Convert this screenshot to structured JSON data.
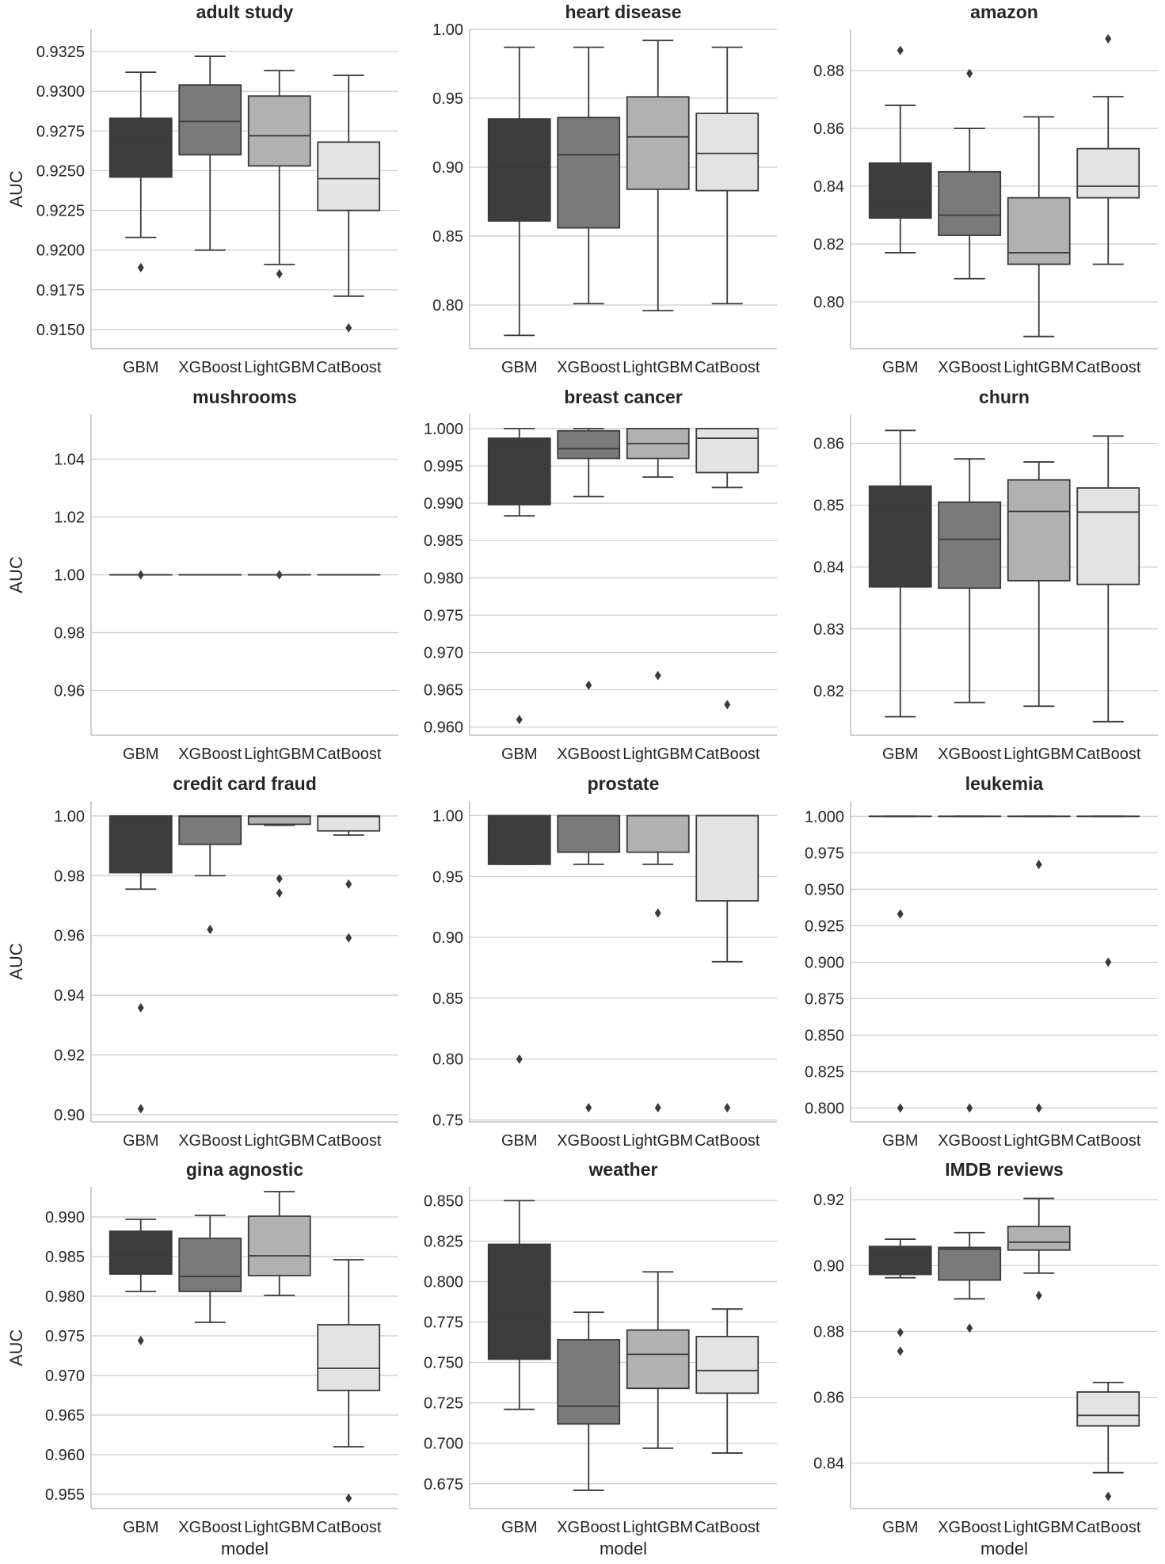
{
  "chart_data": [
    {
      "type": "box",
      "title": "adult study",
      "ylabel": "AUC",
      "xlabel": "",
      "ylim": [
        0.9138,
        0.9339
      ],
      "yticks": [
        0.915,
        0.9175,
        0.92,
        0.9225,
        0.925,
        0.9275,
        0.93,
        0.9325
      ],
      "ytick_labels": [
        "0.9150",
        "0.9175",
        "0.9200",
        "0.9225",
        "0.9250",
        "0.9275",
        "0.9300",
        "0.9325"
      ],
      "categories": [
        "GBM",
        "XGBoost",
        "LightGBM",
        "CatBoost"
      ],
      "boxes": [
        {
          "min": 0.9208,
          "q1": 0.9246,
          "median": 0.927,
          "q3": 0.9283,
          "max": 0.9312,
          "fliers": [
            0.9189
          ]
        },
        {
          "min": 0.92,
          "q1": 0.926,
          "median": 0.9281,
          "q3": 0.9304,
          "max": 0.9322,
          "fliers": []
        },
        {
          "min": 0.9191,
          "q1": 0.9253,
          "median": 0.9272,
          "q3": 0.9297,
          "max": 0.9313,
          "fliers": [
            0.9185
          ]
        },
        {
          "min": 0.9171,
          "q1": 0.9225,
          "median": 0.9245,
          "q3": 0.9268,
          "max": 0.931,
          "fliers": [
            0.9151
          ]
        }
      ]
    },
    {
      "type": "box",
      "title": "heart disease",
      "ylabel": "",
      "xlabel": "",
      "ylim": [
        0.7684,
        1.0
      ],
      "yticks": [
        0.8,
        0.85,
        0.9,
        0.95,
        1.0
      ],
      "ytick_labels": [
        "0.80",
        "0.85",
        "0.90",
        "0.95",
        "1.00"
      ],
      "categories": [
        "GBM",
        "XGBoost",
        "LightGBM",
        "CatBoost"
      ],
      "boxes": [
        {
          "min": 0.778,
          "q1": 0.861,
          "median": 0.9,
          "q3": 0.935,
          "max": 0.987,
          "fliers": []
        },
        {
          "min": 0.801,
          "q1": 0.856,
          "median": 0.909,
          "q3": 0.936,
          "max": 0.987,
          "fliers": []
        },
        {
          "min": 0.796,
          "q1": 0.884,
          "median": 0.922,
          "q3": 0.951,
          "max": 0.992,
          "fliers": []
        },
        {
          "min": 0.801,
          "q1": 0.883,
          "median": 0.91,
          "q3": 0.939,
          "max": 0.987,
          "fliers": []
        }
      ]
    },
    {
      "type": "box",
      "title": "amazon",
      "ylabel": "",
      "xlabel": "",
      "ylim": [
        0.7838,
        0.8943
      ],
      "yticks": [
        0.8,
        0.82,
        0.84,
        0.86,
        0.88
      ],
      "ytick_labels": [
        "0.80",
        "0.82",
        "0.84",
        "0.86",
        "0.88"
      ],
      "categories": [
        "GBM",
        "XGBoost",
        "LightGBM",
        "CatBoost"
      ],
      "boxes": [
        {
          "min": 0.817,
          "q1": 0.829,
          "median": 0.835,
          "q3": 0.848,
          "max": 0.868,
          "fliers": [
            0.887
          ]
        },
        {
          "min": 0.808,
          "q1": 0.823,
          "median": 0.83,
          "q3": 0.845,
          "max": 0.86,
          "fliers": [
            0.879
          ]
        },
        {
          "min": 0.788,
          "q1": 0.813,
          "median": 0.817,
          "q3": 0.836,
          "max": 0.864,
          "fliers": []
        },
        {
          "min": 0.813,
          "q1": 0.836,
          "median": 0.84,
          "q3": 0.853,
          "max": 0.871,
          "fliers": [
            0.891
          ]
        }
      ]
    },
    {
      "type": "box",
      "title": "mushrooms",
      "ylabel": "AUC",
      "xlabel": "",
      "ylim": [
        0.9445,
        1.0555
      ],
      "yticks": [
        0.96,
        0.98,
        1.0,
        1.02,
        1.04
      ],
      "ytick_labels": [
        "0.96",
        "0.98",
        "1.00",
        "1.02",
        "1.04"
      ],
      "categories": [
        "GBM",
        "XGBoost",
        "LightGBM",
        "CatBoost"
      ],
      "boxes": [
        {
          "min": 1.0,
          "q1": 1.0,
          "median": 1.0,
          "q3": 1.0,
          "max": 1.0,
          "fliers": [
            1.0
          ]
        },
        {
          "min": 1.0,
          "q1": 1.0,
          "median": 1.0,
          "q3": 1.0,
          "max": 1.0,
          "fliers": []
        },
        {
          "min": 1.0,
          "q1": 1.0,
          "median": 1.0,
          "q3": 1.0,
          "max": 1.0,
          "fliers": [
            1.0
          ]
        },
        {
          "min": 1.0,
          "q1": 1.0,
          "median": 1.0,
          "q3": 1.0,
          "max": 1.0,
          "fliers": []
        }
      ]
    },
    {
      "type": "box",
      "title": "breast cancer",
      "ylabel": "",
      "xlabel": "",
      "ylim": [
        0.9589,
        1.0019
      ],
      "yticks": [
        0.96,
        0.965,
        0.97,
        0.975,
        0.98,
        0.985,
        0.99,
        0.995,
        1.0
      ],
      "ytick_labels": [
        "0.960",
        "0.965",
        "0.970",
        "0.975",
        "0.980",
        "0.985",
        "0.990",
        "0.995",
        "1.000"
      ],
      "categories": [
        "GBM",
        "XGBoost",
        "LightGBM",
        "CatBoost"
      ],
      "boxes": [
        {
          "min": 0.9883,
          "q1": 0.9898,
          "median": 0.998,
          "q3": 0.9987,
          "max": 1.0,
          "fliers": [
            0.961
          ]
        },
        {
          "min": 0.9909,
          "q1": 0.996,
          "median": 0.9973,
          "q3": 0.9997,
          "max": 1.0,
          "fliers": [
            0.9656
          ]
        },
        {
          "min": 0.9935,
          "q1": 0.996,
          "median": 0.998,
          "q3": 1.0,
          "max": 1.0,
          "fliers": [
            0.9669
          ]
        },
        {
          "min": 0.9921,
          "q1": 0.9941,
          "median": 0.9987,
          "q3": 1.0,
          "max": 1.0,
          "fliers": [
            0.963
          ]
        }
      ]
    },
    {
      "type": "box",
      "title": "churn",
      "ylabel": "",
      "xlabel": "",
      "ylim": [
        0.8128,
        0.8647
      ],
      "yticks": [
        0.82,
        0.83,
        0.84,
        0.85,
        0.86
      ],
      "ytick_labels": [
        "0.82",
        "0.83",
        "0.84",
        "0.85",
        "0.86"
      ],
      "categories": [
        "GBM",
        "XGBoost",
        "LightGBM",
        "CatBoost"
      ],
      "boxes": [
        {
          "min": 0.8158,
          "q1": 0.8368,
          "median": 0.849,
          "q3": 0.8531,
          "max": 0.8621,
          "fliers": []
        },
        {
          "min": 0.8181,
          "q1": 0.8366,
          "median": 0.8445,
          "q3": 0.8505,
          "max": 0.8575,
          "fliers": []
        },
        {
          "min": 0.8175,
          "q1": 0.8378,
          "median": 0.849,
          "q3": 0.8541,
          "max": 0.857,
          "fliers": []
        },
        {
          "min": 0.815,
          "q1": 0.8372,
          "median": 0.8489,
          "q3": 0.8528,
          "max": 0.8612,
          "fliers": []
        }
      ]
    },
    {
      "type": "box",
      "title": "credit card fraud",
      "ylabel": "AUC",
      "xlabel": "",
      "ylim": [
        0.8976,
        1.005
      ],
      "yticks": [
        0.9,
        0.92,
        0.94,
        0.96,
        0.98,
        1.0
      ],
      "ytick_labels": [
        "0.90",
        "0.92",
        "0.94",
        "0.96",
        "0.98",
        "1.00"
      ],
      "categories": [
        "GBM",
        "XGBoost",
        "LightGBM",
        "CatBoost"
      ],
      "boxes": [
        {
          "min": 0.9755,
          "q1": 0.981,
          "median": 0.9998,
          "q3": 1.0,
          "max": 1.0,
          "fliers": [
            0.9358,
            0.902
          ]
        },
        {
          "min": 0.98,
          "q1": 0.9905,
          "median": 0.9998,
          "q3": 1.0,
          "max": 1.0,
          "fliers": [
            0.962
          ]
        },
        {
          "min": 0.9969,
          "q1": 0.9972,
          "median": 0.9998,
          "q3": 1.0,
          "max": 1.0,
          "fliers": [
            0.979,
            0.9742
          ]
        },
        {
          "min": 0.9936,
          "q1": 0.995,
          "median": 0.9998,
          "q3": 1.0,
          "max": 1.0,
          "fliers": [
            0.9772,
            0.9592
          ]
        }
      ]
    },
    {
      "type": "box",
      "title": "prostate",
      "ylabel": "",
      "xlabel": "",
      "ylim": [
        0.7484,
        1.012
      ],
      "yticks": [
        0.75,
        0.8,
        0.85,
        0.9,
        0.95,
        1.0
      ],
      "ytick_labels": [
        "0.75",
        "0.80",
        "0.85",
        "0.90",
        "0.95",
        "1.00"
      ],
      "categories": [
        "GBM",
        "XGBoost",
        "LightGBM",
        "CatBoost"
      ],
      "boxes": [
        {
          "min": 0.96,
          "q1": 0.96,
          "median": 1.0,
          "q3": 1.0,
          "max": 1.0,
          "fliers": [
            0.8
          ]
        },
        {
          "min": 0.96,
          "q1": 0.97,
          "median": 1.0,
          "q3": 1.0,
          "max": 1.0,
          "fliers": [
            0.76
          ]
        },
        {
          "min": 0.96,
          "q1": 0.97,
          "median": 1.0,
          "q3": 1.0,
          "max": 1.0,
          "fliers": [
            0.92,
            0.76
          ]
        },
        {
          "min": 0.88,
          "q1": 0.93,
          "median": 1.0,
          "q3": 1.0,
          "max": 1.0,
          "fliers": [
            0.76
          ]
        }
      ]
    },
    {
      "type": "box",
      "title": "leukemia",
      "ylabel": "",
      "xlabel": "",
      "ylim": [
        0.7905,
        1.0105
      ],
      "yticks": [
        0.8,
        0.825,
        0.85,
        0.875,
        0.9,
        0.925,
        0.95,
        0.975,
        1.0
      ],
      "ytick_labels": [
        "0.800",
        "0.825",
        "0.850",
        "0.875",
        "0.900",
        "0.925",
        "0.950",
        "0.975",
        "1.000"
      ],
      "categories": [
        "GBM",
        "XGBoost",
        "LightGBM",
        "CatBoost"
      ],
      "boxes": [
        {
          "min": 1.0,
          "q1": 1.0,
          "median": 1.0,
          "q3": 1.0,
          "max": 1.0,
          "fliers": [
            0.933,
            0.8
          ]
        },
        {
          "min": 1.0,
          "q1": 1.0,
          "median": 1.0,
          "q3": 1.0,
          "max": 1.0,
          "fliers": [
            0.8
          ]
        },
        {
          "min": 1.0,
          "q1": 1.0,
          "median": 1.0,
          "q3": 1.0,
          "max": 1.0,
          "fliers": [
            0.967,
            0.8
          ]
        },
        {
          "min": 1.0,
          "q1": 1.0,
          "median": 1.0,
          "q3": 1.0,
          "max": 1.0,
          "fliers": [
            0.9
          ]
        }
      ]
    },
    {
      "type": "box",
      "title": "gina agnostic",
      "ylabel": "AUC",
      "xlabel": "model",
      "ylim": [
        0.9532,
        0.9938
      ],
      "yticks": [
        0.955,
        0.96,
        0.965,
        0.97,
        0.975,
        0.98,
        0.985,
        0.99
      ],
      "ytick_labels": [
        "0.955",
        "0.960",
        "0.965",
        "0.970",
        "0.975",
        "0.980",
        "0.985",
        "0.990"
      ],
      "categories": [
        "GBM",
        "XGBoost",
        "LightGBM",
        "CatBoost"
      ],
      "boxes": [
        {
          "min": 0.9806,
          "q1": 0.9828,
          "median": 0.9852,
          "q3": 0.9882,
          "max": 0.9897,
          "fliers": [
            0.9744
          ]
        },
        {
          "min": 0.9767,
          "q1": 0.9806,
          "median": 0.9825,
          "q3": 0.9873,
          "max": 0.9902,
          "fliers": []
        },
        {
          "min": 0.9801,
          "q1": 0.9826,
          "median": 0.9851,
          "q3": 0.9901,
          "max": 0.9932,
          "fliers": []
        },
        {
          "min": 0.961,
          "q1": 0.9681,
          "median": 0.9709,
          "q3": 0.9764,
          "max": 0.9846,
          "fliers": [
            0.9545
          ]
        }
      ]
    },
    {
      "type": "box",
      "title": "weather",
      "ylabel": "",
      "xlabel": "model",
      "ylim": [
        0.6597,
        0.8585
      ],
      "yticks": [
        0.675,
        0.7,
        0.725,
        0.75,
        0.775,
        0.8,
        0.825,
        0.85
      ],
      "ytick_labels": [
        "0.675",
        "0.700",
        "0.725",
        "0.750",
        "0.775",
        "0.800",
        "0.825",
        "0.850"
      ],
      "categories": [
        "GBM",
        "XGBoost",
        "LightGBM",
        "CatBoost"
      ],
      "boxes": [
        {
          "min": 0.721,
          "q1": 0.752,
          "median": 0.778,
          "q3": 0.823,
          "max": 0.85,
          "fliers": []
        },
        {
          "min": 0.671,
          "q1": 0.712,
          "median": 0.723,
          "q3": 0.764,
          "max": 0.781,
          "fliers": []
        },
        {
          "min": 0.697,
          "q1": 0.734,
          "median": 0.755,
          "q3": 0.77,
          "max": 0.806,
          "fliers": []
        },
        {
          "min": 0.694,
          "q1": 0.731,
          "median": 0.745,
          "q3": 0.766,
          "max": 0.783,
          "fliers": []
        }
      ]
    },
    {
      "type": "box",
      "title": "IMDB reviews",
      "ylabel": "",
      "xlabel": "model",
      "ylim": [
        0.8262,
        0.9239
      ],
      "yticks": [
        0.84,
        0.86,
        0.88,
        0.9,
        0.92
      ],
      "ytick_labels": [
        "0.84",
        "0.86",
        "0.88",
        "0.90",
        "0.92"
      ],
      "categories": [
        "GBM",
        "XGBoost",
        "LightGBM",
        "CatBoost"
      ],
      "boxes": [
        {
          "min": 0.8963,
          "q1": 0.8973,
          "median": 0.9033,
          "q3": 0.9058,
          "max": 0.908,
          "fliers": [
            0.8797,
            0.874
          ]
        },
        {
          "min": 0.8899,
          "q1": 0.8956,
          "median": 0.905,
          "q3": 0.9055,
          "max": 0.91,
          "fliers": [
            0.881
          ]
        },
        {
          "min": 0.8977,
          "q1": 0.9047,
          "median": 0.9071,
          "q3": 0.9119,
          "max": 0.9204,
          "fliers": [
            0.8909
          ]
        },
        {
          "min": 0.8371,
          "q1": 0.8513,
          "median": 0.8545,
          "q3": 0.8616,
          "max": 0.8645,
          "fliers": [
            0.8299
          ]
        }
      ]
    }
  ],
  "colors": [
    "#3d3d3d",
    "#7a7a7a",
    "#b1b1b1",
    "#e3e3e3"
  ]
}
